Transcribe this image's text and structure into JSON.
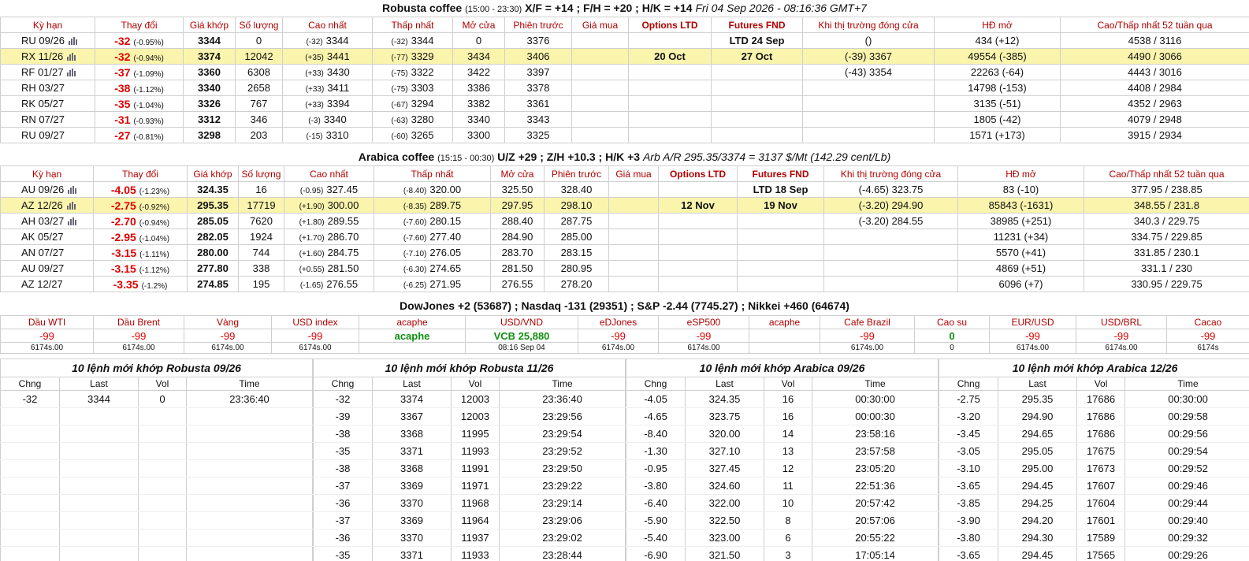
{
  "robusta": {
    "title": {
      "name": "Robusta coffee",
      "hours": "(15:00 - 23:30)",
      "spreads": "X/F = +14 ; F/H = +20 ; H/K = +14",
      "time": "Fri 04 Sep 2026 - 08:16:36 GMT+7"
    },
    "headers": [
      "Kỳ hạn",
      "Thay đổi",
      "Giá khớp",
      "Số lượng",
      "Cao nhất",
      "Thấp nhất",
      "Mở cửa",
      "Phiên trước",
      "Giá mua",
      "Options LTD",
      "Futures FND",
      "Khi thị trường đóng cửa",
      "HĐ mở",
      "Cao/Thấp nhất 52 tuần qua"
    ],
    "rows": [
      [
        "RU 09/26",
        [
          "-32",
          "(-0.95%)"
        ],
        "3344",
        "0",
        [
          "(-32)",
          "3344"
        ],
        [
          "(-32)",
          "3344"
        ],
        "0",
        "3376",
        null,
        null,
        "LTD 24 Sep",
        "()",
        "434 (+12)",
        "4538 / 3116"
      ],
      [
        "RX 11/26",
        [
          "-32",
          "(-0.94%)"
        ],
        "3374",
        "12042",
        [
          "(+35)",
          "3441"
        ],
        [
          "(-77)",
          "3329"
        ],
        "3434",
        "3406",
        null,
        "20 Oct",
        "27 Oct",
        "(-39) 3367",
        "49554 (-385)",
        "4490 / 3066"
      ],
      [
        "RF 01/27",
        [
          "-37",
          "(-1.09%)"
        ],
        "3360",
        "6308",
        [
          "(+33)",
          "3430"
        ],
        [
          "(-75)",
          "3322"
        ],
        "3422",
        "3397",
        null,
        null,
        null,
        "(-43) 3354",
        "22263 (-64)",
        "4443 / 3016"
      ],
      [
        "RH 03/27",
        [
          "-38",
          "(-1.12%)"
        ],
        "3340",
        "2658",
        [
          "(+33)",
          "3411"
        ],
        [
          "(-75)",
          "3303"
        ],
        "3386",
        "3378",
        null,
        null,
        null,
        null,
        "14798 (-153)",
        "4408 / 2984"
      ],
      [
        "RK 05/27",
        [
          "-35",
          "(-1.04%)"
        ],
        "3326",
        "767",
        [
          "(+33)",
          "3394"
        ],
        [
          "(-67)",
          "3294"
        ],
        "3382",
        "3361",
        null,
        null,
        null,
        null,
        "3135 (-51)",
        "4352 / 2963"
      ],
      [
        "RN 07/27",
        [
          "-31",
          "(-0.93%)"
        ],
        "3312",
        "346",
        [
          "(-3)",
          "3340"
        ],
        [
          "(-63)",
          "3280"
        ],
        "3340",
        "3343",
        null,
        null,
        null,
        null,
        "1805 (-42)",
        "4079 / 2948"
      ],
      [
        "RU 09/27",
        [
          "-27",
          "(-0.81%)"
        ],
        "3298",
        "203",
        [
          "(-15)",
          "3310"
        ],
        [
          "(-60)",
          "3265"
        ],
        "3300",
        "3325",
        null,
        null,
        null,
        null,
        "1571 (+173)",
        "3915 / 2934"
      ]
    ]
  },
  "arabica": {
    "title": {
      "name": "Arabica coffee",
      "hours": "(15:15 - 00:30)",
      "spreads": "U/Z +29 ; Z/H +10.3 ; H/K +3",
      "time": "Arb A/R 295.35/3374 = 3137 $/Mt (142.29 cent/Lb)"
    },
    "headers": [
      "Kỳ hạn",
      "Thay đổi",
      "Giá khớp",
      "Số lượng",
      "Cao nhất",
      "Thấp nhất",
      "Mở cửa",
      "Phiên trước",
      "Giá mua",
      "Options LTD",
      "Futures FND",
      "Khi thị trường đóng cửa",
      "HĐ mở",
      "Cao/Thấp nhất 52 tuần qua"
    ],
    "rows": [
      [
        "AU 09/26",
        [
          "-4.05",
          "(-1.23%)"
        ],
        "324.35",
        "16",
        [
          "(-0.95)",
          "327.45"
        ],
        [
          "(-8.40)",
          "320.00"
        ],
        "325.50",
        "328.40",
        null,
        null,
        "LTD 18 Sep",
        "(-4.65) 323.75",
        "83 (-10)",
        "377.95 / 238.85"
      ],
      [
        "AZ 12/26",
        [
          "-2.75",
          "(-0.92%)"
        ],
        "295.35",
        "17719",
        [
          "(+1.90)",
          "300.00"
        ],
        [
          "(-8.35)",
          "289.75"
        ],
        "297.95",
        "298.10",
        null,
        "12 Nov",
        "19 Nov",
        "(-3.20) 294.90",
        "85843 (-1631)",
        "348.55 / 231.8"
      ],
      [
        "AH 03/27",
        [
          "-2.70",
          "(-0.94%)"
        ],
        "285.05",
        "7620",
        [
          "(+1.80)",
          "289.55"
        ],
        [
          "(-7.60)",
          "280.15"
        ],
        "288.40",
        "287.75",
        null,
        null,
        null,
        "(-3.20) 284.55",
        "38985 (+251)",
        "340.3 / 229.75"
      ],
      [
        "AK 05/27",
        [
          "-2.95",
          "(-1.04%)"
        ],
        "282.05",
        "1924",
        [
          "(+1.70)",
          "286.70"
        ],
        [
          "(-7.60)",
          "277.40"
        ],
        "284.90",
        "285.00",
        null,
        null,
        null,
        null,
        "11231 (+34)",
        "334.75 / 229.85"
      ],
      [
        "AN 07/27",
        [
          "-3.15",
          "(-1.11%)"
        ],
        "280.00",
        "744",
        [
          "(+1.60)",
          "284.75"
        ],
        [
          "(-7.10)",
          "276.05"
        ],
        "283.70",
        "283.15",
        null,
        null,
        null,
        null,
        "5570 (+41)",
        "331.85 / 230.1"
      ],
      [
        "AU 09/27",
        [
          "-3.15",
          "(-1.12%)"
        ],
        "277.80",
        "338",
        [
          "(+0.55)",
          "281.50"
        ],
        [
          "(-6.30)",
          "274.65"
        ],
        "281.50",
        "280.95",
        null,
        null,
        null,
        null,
        "4869 (+51)",
        "331.1 / 230"
      ],
      [
        "AZ 12/27",
        [
          "-3.35",
          "(-1.2%)"
        ],
        "274.85",
        "195",
        [
          "(-1.65)",
          "276.55"
        ],
        [
          "(-6.25)",
          "271.95"
        ],
        "276.55",
        "278.20",
        null,
        null,
        null,
        null,
        "6096 (+7)",
        "330.95 / 229.75"
      ]
    ]
  },
  "indices": "DowJones +2 (53687) ; Nasdaq -131 (29351) ; S&P -2.44 (7745.27) ; Nikkei +460 (64674)",
  "markets": {
    "headers": [
      "Dầu WTI",
      "Dầu Brent",
      "Vàng",
      "USD index",
      "acaphe",
      "USD/VND",
      "eDJones",
      "eSP500",
      "acaphe",
      "Cafe Brazil",
      "Cao su",
      "EUR/USD",
      "USD/BRL",
      "Cacao"
    ],
    "values": [
      "-99",
      "-99",
      "-99",
      "-99",
      "acaphe",
      "VCB 25,880",
      "-99",
      "-99",
      null,
      "-99",
      "0",
      "-99",
      "-99",
      "-99"
    ],
    "times": [
      "6174s.00",
      "6174s.00",
      "6174s.00",
      "6174s.00",
      null,
      "08:16 Sep 04",
      "6174s.00",
      "6174s.00",
      null,
      "6174s.00",
      "0",
      "6174s.00",
      "6174s.00",
      "6174s"
    ]
  },
  "trades": [
    {
      "title": "10 lệnh mới khớp Robusta 09/26",
      "headers": [
        "Chng",
        "Last",
        "Vol",
        "Time"
      ],
      "rows": [
        [
          "-32",
          "3344",
          "0",
          "23:36:40"
        ]
      ]
    },
    {
      "title": "10 lệnh mới khớp Robusta 11/26",
      "headers": [
        "Chng",
        "Last",
        "Vol",
        "Time"
      ],
      "rows": [
        [
          "-32",
          "3374",
          "12003",
          "23:36:40"
        ],
        [
          "-39",
          "3367",
          "12003",
          "23:29:56"
        ],
        [
          "-38",
          "3368",
          "11995",
          "23:29:54"
        ],
        [
          "-35",
          "3371",
          "11993",
          "23:29:52"
        ],
        [
          "-38",
          "3368",
          "11991",
          "23:29:50"
        ],
        [
          "-37",
          "3369",
          "11971",
          "23:29:22"
        ],
        [
          "-36",
          "3370",
          "11968",
          "23:29:14"
        ],
        [
          "-37",
          "3369",
          "11964",
          "23:29:06"
        ],
        [
          "-36",
          "3370",
          "11937",
          "23:29:02"
        ],
        [
          "-35",
          "3371",
          "11933",
          "23:28:44"
        ]
      ]
    },
    {
      "title": "10 lệnh mới khớp Arabica 09/26",
      "headers": [
        "Chng",
        "Last",
        "Vol",
        "Time"
      ],
      "rows": [
        [
          "-4.05",
          "324.35",
          "16",
          "00:30:00"
        ],
        [
          "-4.65",
          "323.75",
          "16",
          "00:00:30"
        ],
        [
          "-8.40",
          "320.00",
          "14",
          "23:58:16"
        ],
        [
          "-1.30",
          "327.10",
          "13",
          "23:57:58"
        ],
        [
          "-0.95",
          "327.45",
          "12",
          "23:05:20"
        ],
        [
          "-3.80",
          "324.60",
          "11",
          "22:51:36"
        ],
        [
          "-6.40",
          "322.00",
          "10",
          "20:57:42"
        ],
        [
          "-5.90",
          "322.50",
          "8",
          "20:57:06"
        ],
        [
          "-5.40",
          "323.00",
          "6",
          "20:55:22"
        ],
        [
          "-6.90",
          "321.50",
          "3",
          "17:05:14"
        ]
      ]
    },
    {
      "title": "10 lệnh mới khớp Arabica 12/26",
      "headers": [
        "Chng",
        "Last",
        "Vol",
        "Time"
      ],
      "rows": [
        [
          "-2.75",
          "295.35",
          "17686",
          "00:30:00"
        ],
        [
          "-3.20",
          "294.90",
          "17686",
          "00:29:58"
        ],
        [
          "-3.45",
          "294.65",
          "17686",
          "00:29:56"
        ],
        [
          "-3.05",
          "295.05",
          "17675",
          "00:29:54"
        ],
        [
          "-3.10",
          "295.00",
          "17673",
          "00:29:52"
        ],
        [
          "-3.65",
          "294.45",
          "17607",
          "00:29:46"
        ],
        [
          "-3.85",
          "294.25",
          "17604",
          "00:29:44"
        ],
        [
          "-3.90",
          "294.20",
          "17601",
          "00:29:40"
        ],
        [
          "-3.80",
          "294.30",
          "17589",
          "00:29:32"
        ],
        [
          "-3.65",
          "294.45",
          "17565",
          "00:29:26"
        ]
      ]
    }
  ]
}
